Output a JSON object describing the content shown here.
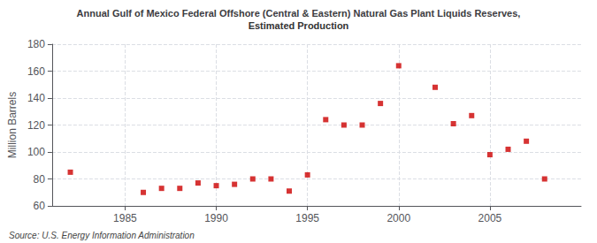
{
  "chart_data": {
    "type": "scatter",
    "title": "Annual Gulf of Mexico Federal Offshore (Central & Eastern) Natural Gas Plant Liquids Reserves,",
    "subtitle": "Estimated Production",
    "ylabel": "Million Barrels",
    "annotations": [
      "Source: U.S. Energy Information Administration"
    ],
    "x": [
      1982,
      1986,
      1987,
      1988,
      1989,
      1990,
      1991,
      1992,
      1993,
      1994,
      1995,
      1996,
      1997,
      1998,
      1999,
      2000,
      2002,
      2003,
      2004,
      2005,
      2006,
      2007,
      2008
    ],
    "values": [
      85,
      70,
      73,
      73,
      77,
      75,
      76,
      80,
      80,
      71,
      83,
      124,
      120,
      120,
      136,
      164,
      148,
      121,
      127,
      98,
      102,
      108,
      80
    ],
    "color": "#cc0000",
    "marker": "square",
    "xlim": [
      1981,
      2010
    ],
    "ylim": [
      60,
      180
    ],
    "xticks": [
      1985,
      1990,
      1995,
      2000,
      2005
    ],
    "yticks": [
      60,
      80,
      100,
      120,
      140,
      160,
      180
    ],
    "grid": true
  }
}
